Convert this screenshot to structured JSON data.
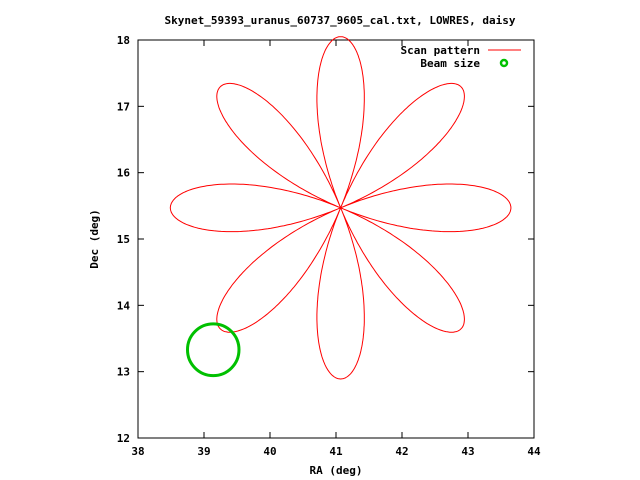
{
  "chart_data": {
    "type": "line",
    "title": "Skynet_59393_uranus_60737_9605_cal.txt, LOWRES, daisy",
    "xlabel": "RA (deg)",
    "ylabel": "Dec (deg)",
    "xlim": [
      38,
      44
    ],
    "ylim": [
      12,
      18
    ],
    "xticks": [
      "38",
      "39",
      "40",
      "41",
      "42",
      "43",
      "44"
    ],
    "yticks": [
      "12",
      "13",
      "14",
      "15",
      "16",
      "17",
      "18"
    ],
    "grid": false,
    "legend_position": "top-right",
    "series": [
      {
        "name": "Scan pattern",
        "color": "#ff0000",
        "pattern": "daisy",
        "center": [
          41.07,
          15.47
        ],
        "petal_length_deg": 2.58,
        "petals": 8
      },
      {
        "name": "Beam size",
        "color": "#00c000",
        "shape": "circle",
        "center": [
          39.14,
          13.33
        ],
        "radius_deg": 0.39
      }
    ]
  }
}
